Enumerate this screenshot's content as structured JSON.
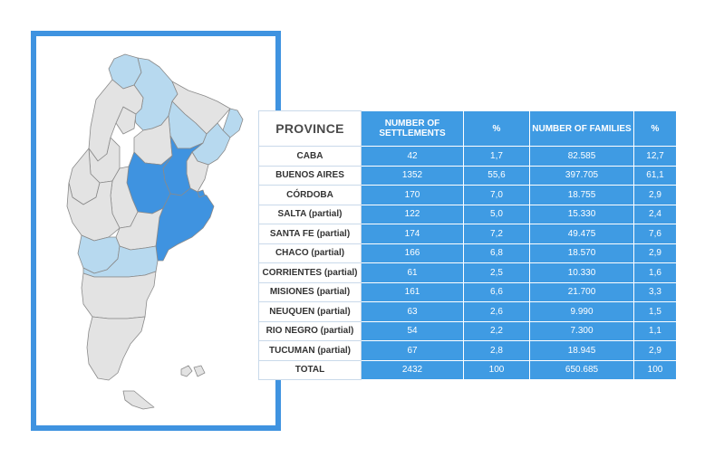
{
  "table": {
    "headers": {
      "province": "PROVINCE",
      "settlements": "NUMBER OF SETTLEMENTS",
      "pct1": "%",
      "families": "NUMBER OF FAMILIES",
      "pct2": "%"
    },
    "rows": [
      {
        "province": "CABA",
        "settlements": "42",
        "pct1": "1,7",
        "families": "82.585",
        "pct2": "12,7"
      },
      {
        "province": "BUENOS AIRES",
        "settlements": "1352",
        "pct1": "55,6",
        "families": "397.705",
        "pct2": "61,1"
      },
      {
        "province": "CÓRDOBA",
        "settlements": "170",
        "pct1": "7,0",
        "families": "18.755",
        "pct2": "2,9"
      },
      {
        "province": "SALTA (partial)",
        "settlements": "122",
        "pct1": "5,0",
        "families": "15.330",
        "pct2": "2,4"
      },
      {
        "province": "SANTA FE (partial)",
        "settlements": "174",
        "pct1": "7,2",
        "families": "49.475",
        "pct2": "7,6"
      },
      {
        "province": "CHACO (partial)",
        "settlements": "166",
        "pct1": "6,8",
        "families": "18.570",
        "pct2": "2,9"
      },
      {
        "province": "CORRIENTES (partial)",
        "settlements": "61",
        "pct1": "2,5",
        "families": "10.330",
        "pct2": "1,6"
      },
      {
        "province": "MISIONES (partial)",
        "settlements": "161",
        "pct1": "6,6",
        "families": "21.700",
        "pct2": "3,3"
      },
      {
        "province": "NEUQUEN (partial)",
        "settlements": "63",
        "pct1": "2,6",
        "families": "9.990",
        "pct2": "1,5"
      },
      {
        "province": "RIO NEGRO (partial)",
        "settlements": "54",
        "pct1": "2,2",
        "families": "7.300",
        "pct2": "1,1"
      },
      {
        "province": "TUCUMAN (partial)",
        "settlements": "67",
        "pct1": "2,8",
        "families": "18.945",
        "pct2": "2,9"
      },
      {
        "province": "TOTAL",
        "settlements": "2432",
        "pct1": "100",
        "families": "650.685",
        "pct2": "100"
      }
    ]
  },
  "map": {
    "colors": {
      "frame": "#3f93e0",
      "highlight_strong": "#3f93e0",
      "highlight_light": "#b7d9ef",
      "neutral": "#e3e3e3",
      "border": "#8a8a8a"
    }
  }
}
